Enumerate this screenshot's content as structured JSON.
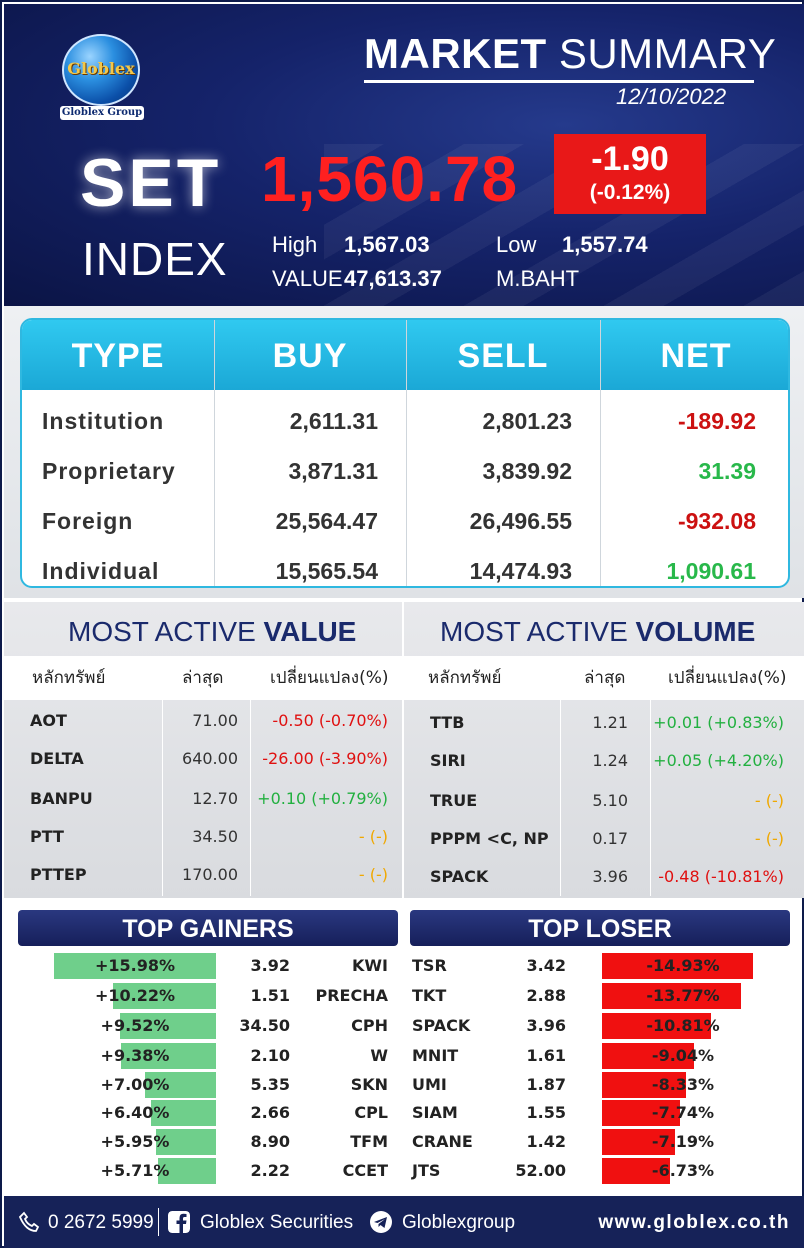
{
  "header": {
    "logo_text": "Globlex",
    "logo_sub": "Globlex Group",
    "title_bold": "MARKET",
    "title_light": "SUMMARY",
    "date": "12/10/2022",
    "set_label": "SET",
    "index_label": "INDEX",
    "index_value": "1,560.78",
    "change": "-1.90",
    "change_pct": "(-0.12%)",
    "high_label": "High",
    "high_value": "1,567.03",
    "low_label": "Low",
    "low_value": "1,557.74",
    "value_label": "VALUE",
    "value_value": "47,613.37",
    "value_unit": "M.BAHT",
    "colors": {
      "index": "#ff2020",
      "change_box": "#e81818",
      "bg": "#15236a"
    }
  },
  "investor_table": {
    "headers": [
      "TYPE",
      "BUY",
      "SELL",
      "NET"
    ],
    "rows": [
      {
        "type": "Institution",
        "buy": "2,611.31",
        "sell": "2,801.23",
        "net": "-189.92",
        "dir": "neg"
      },
      {
        "type": "Proprietary",
        "buy": "3,871.31",
        "sell": "3,839.92",
        "net": "31.39",
        "dir": "pos"
      },
      {
        "type": "Foreign",
        "buy": "25,564.47",
        "sell": "26,496.55",
        "net": "-932.08",
        "dir": "neg"
      },
      {
        "type": "Individual",
        "buy": "15,565.54",
        "sell": "14,474.93",
        "net": "1,090.61",
        "dir": "pos"
      }
    ]
  },
  "most_active_value": {
    "title_light": "MOST ACTIVE",
    "title_bold": "VALUE",
    "headers": [
      "หลักทรัพย์",
      "ล่าสุด",
      "เปลี่ยนแปลง(%)"
    ],
    "rows": [
      {
        "symbol": "AOT",
        "last": "71.00",
        "change": "-0.50 (-0.70%)",
        "dir": "red"
      },
      {
        "symbol": "DELTA",
        "last": "640.00",
        "change": "-26.00 (-3.90%)",
        "dir": "red"
      },
      {
        "symbol": "BANPU",
        "last": "12.70",
        "change": "+0.10 (+0.79%)",
        "dir": "grn"
      },
      {
        "symbol": "PTT",
        "last": "34.50",
        "change": "- (-)",
        "dir": "yel"
      },
      {
        "symbol": "PTTEP",
        "last": "170.00",
        "change": "- (-)",
        "dir": "yel"
      }
    ]
  },
  "most_active_volume": {
    "title_light": "MOST ACTIVE",
    "title_bold": "VOLUME",
    "headers": [
      "หลักทรัพย์",
      "ล่าสุด",
      "เปลี่ยนแปลง(%)"
    ],
    "rows": [
      {
        "symbol": "TTB",
        "last": "1.21",
        "change": "+0.01 (+0.83%)",
        "dir": "grn"
      },
      {
        "symbol": "SIRI",
        "last": "1.24",
        "change": "+0.05 (+4.20%)",
        "dir": "grn"
      },
      {
        "symbol": "TRUE",
        "last": "5.10",
        "change": "- (-)",
        "dir": "yel"
      },
      {
        "symbol": "PPPM <C, NP",
        "last": "0.17",
        "change": "- (-)",
        "dir": "yel"
      },
      {
        "symbol": "SPACK",
        "last": "3.96",
        "change": "-0.48 (-10.81%)",
        "dir": "red"
      }
    ]
  },
  "top_gainers": {
    "title": "TOP GAINERS",
    "rows": [
      {
        "pct": "+15.98%",
        "pct_value": 15.98,
        "price": "3.92",
        "symbol": "KWI"
      },
      {
        "pct": "+10.22%",
        "pct_value": 10.22,
        "price": "1.51",
        "symbol": "PRECHA"
      },
      {
        "pct": "+9.52%",
        "pct_value": 9.52,
        "price": "34.50",
        "symbol": "CPH"
      },
      {
        "pct": "+9.38%",
        "pct_value": 9.38,
        "price": "2.10",
        "symbol": "W"
      },
      {
        "pct": "+7.00%",
        "pct_value": 7.0,
        "price": "5.35",
        "symbol": "SKN"
      },
      {
        "pct": "+6.40%",
        "pct_value": 6.4,
        "price": "2.66",
        "symbol": "CPL"
      },
      {
        "pct": "+5.95%",
        "pct_value": 5.95,
        "price": "8.90",
        "symbol": "TFM"
      },
      {
        "pct": "+5.71%",
        "pct_value": 5.71,
        "price": "2.22",
        "symbol": "CCET"
      }
    ]
  },
  "top_losers": {
    "title": "TOP LOSER",
    "rows": [
      {
        "symbol": "TSR",
        "price": "3.42",
        "pct": "-14.93%",
        "pct_value": 14.93
      },
      {
        "symbol": "TKT",
        "price": "2.88",
        "pct": "-13.77%",
        "pct_value": 13.77
      },
      {
        "symbol": "SPACK",
        "price": "3.96",
        "pct": "-10.81%",
        "pct_value": 10.81
      },
      {
        "symbol": "MNIT",
        "price": "1.61",
        "pct": "-9.04%",
        "pct_value": 9.04
      },
      {
        "symbol": "UMI",
        "price": "1.87",
        "pct": "-8.33%",
        "pct_value": 8.33
      },
      {
        "symbol": "SIAM",
        "price": "1.55",
        "pct": "-7.74%",
        "pct_value": 7.74
      },
      {
        "symbol": "CRANE",
        "price": "1.42",
        "pct": "-7.19%",
        "pct_value": 7.19
      },
      {
        "symbol": "JTS",
        "price": "52.00",
        "pct": "-6.73%",
        "pct_value": 6.73
      }
    ]
  },
  "footer": {
    "phone": "0 2672 5999",
    "facebook": "Globlex Securities",
    "telegram": "Globlexgroup",
    "website": "www.globlex.co.th",
    "icons": [
      "phone-icon",
      "facebook-icon",
      "telegram-icon"
    ]
  }
}
